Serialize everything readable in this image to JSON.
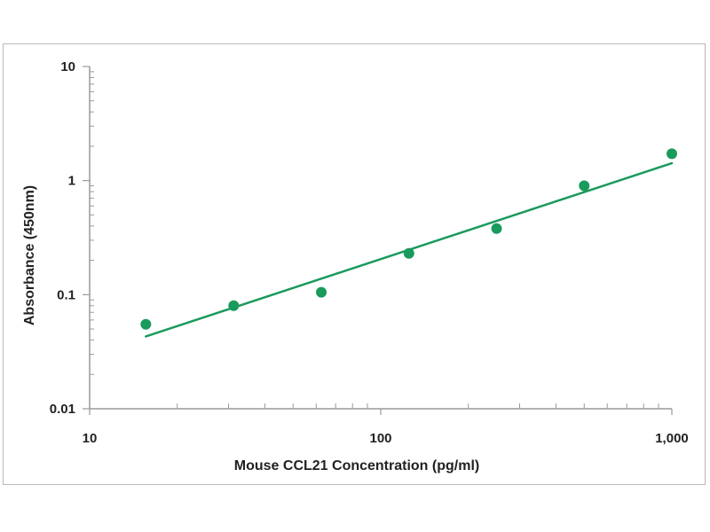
{
  "chart_data": {
    "type": "scatter",
    "xlabel": "Mouse CCL21 Concentration (pg/ml)",
    "ylabel": "Absorbance (450nm)",
    "x_scale": "log",
    "y_scale": "log",
    "xlim": [
      10,
      1000
    ],
    "ylim": [
      0.01,
      10
    ],
    "x_ticks": [
      {
        "value": 10,
        "label": "10"
      },
      {
        "value": 100,
        "label": "100"
      },
      {
        "value": 1000,
        "label": "1,000"
      }
    ],
    "y_ticks": [
      {
        "value": 10,
        "label": "10"
      },
      {
        "value": 1,
        "label": "1"
      },
      {
        "value": 0.1,
        "label": "0.1"
      },
      {
        "value": 0.01,
        "label": "0.01"
      }
    ],
    "grid": false,
    "legend": "none",
    "series": [
      {
        "points": [
          {
            "x": 15.6,
            "y": 0.055
          },
          {
            "x": 31.25,
            "y": 0.08
          },
          {
            "x": 62.5,
            "y": 0.105
          },
          {
            "x": 125,
            "y": 0.23
          },
          {
            "x": 250,
            "y": 0.38
          },
          {
            "x": 500,
            "y": 0.9
          },
          {
            "x": 1000,
            "y": 1.72
          }
        ],
        "fit": {
          "type": "power",
          "x_start": 15.6,
          "y_start": 0.043,
          "x_end": 1000,
          "y_end": 1.42
        },
        "color": "#1a9a5c"
      }
    ]
  },
  "colors": {
    "series": "#1a9a5c",
    "axis": "#9a9a9a",
    "frame_border": "#b9b9b9"
  }
}
